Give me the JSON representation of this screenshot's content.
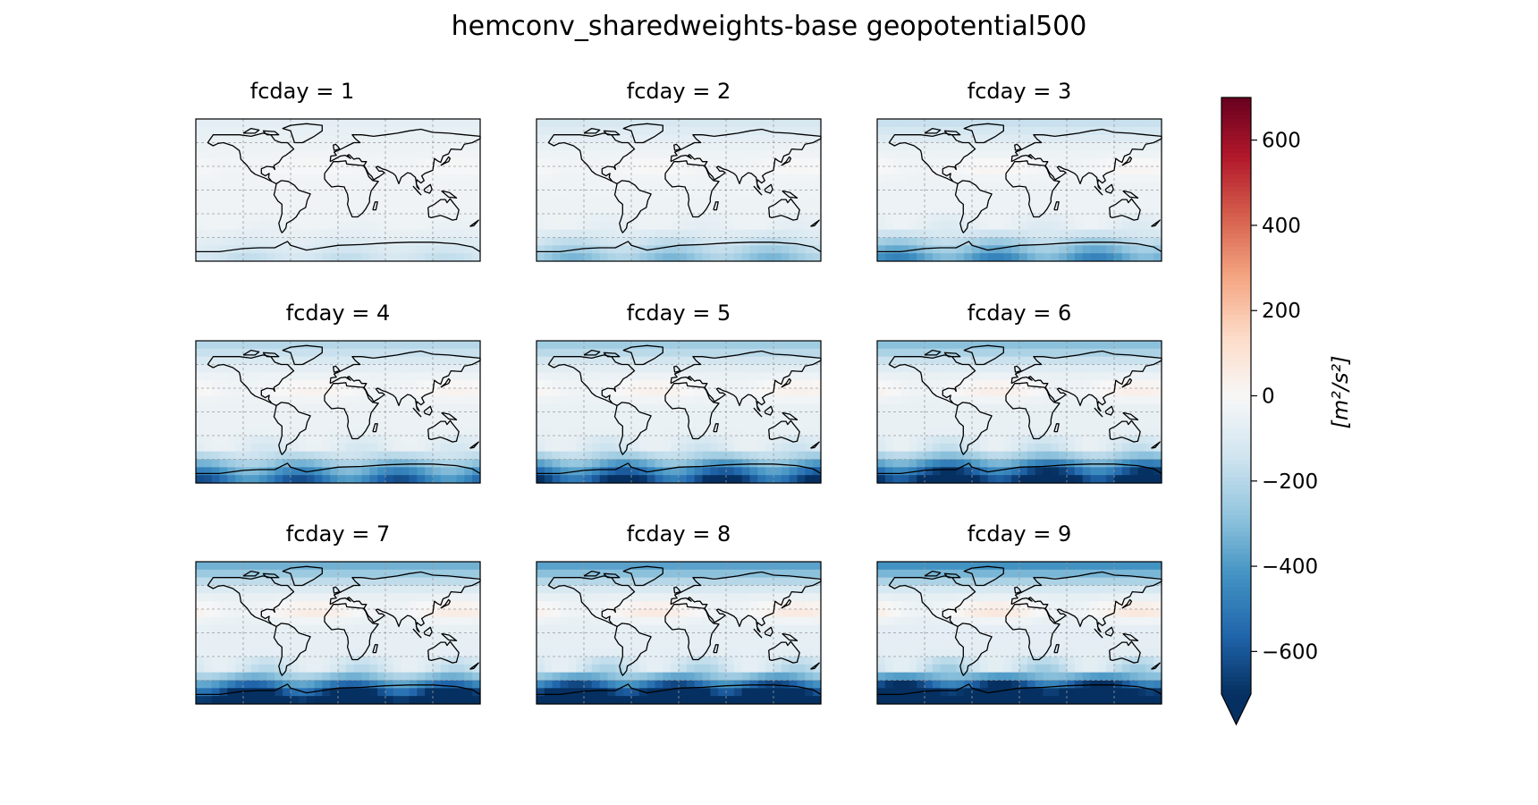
{
  "figure": {
    "title": "hemconv_sharedweights-base geopotential500"
  },
  "chart_data": {
    "type": "heatmap",
    "title": "hemconv_sharedweights-base geopotential500",
    "panels": [
      {
        "title": "fcday = 1",
        "fcday": 1
      },
      {
        "title": "fcday = 2",
        "fcday": 2
      },
      {
        "title": "fcday = 3",
        "fcday": 3
      },
      {
        "title": "fcday = 4",
        "fcday": 4
      },
      {
        "title": "fcday = 5",
        "fcday": 5
      },
      {
        "title": "fcday = 6",
        "fcday": 6
      },
      {
        "title": "fcday = 7",
        "fcday": 7
      },
      {
        "title": "fcday = 8",
        "fcday": 8
      },
      {
        "title": "fcday = 9",
        "fcday": 9
      }
    ],
    "layout": {
      "rows": 3,
      "cols": 3
    },
    "colorbar": {
      "label": "[m²/s²]",
      "colormap": "RdBu_r",
      "vmin": -700,
      "vmax": 700,
      "ticks": [
        -600,
        -400,
        -200,
        0,
        200,
        400,
        600
      ],
      "tick_labels": [
        "−600",
        "−400",
        "−200",
        "0",
        "200",
        "400",
        "600"
      ],
      "extend": "min"
    },
    "grid": true,
    "map": "world coastlines, equirectangular projection"
  }
}
